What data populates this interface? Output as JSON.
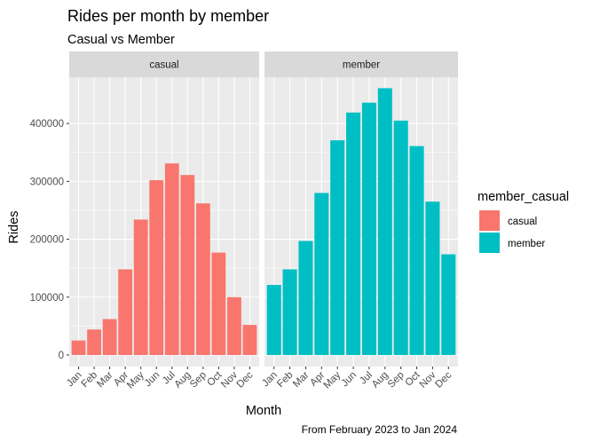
{
  "chart_data": {
    "type": "bar",
    "title": "Rides per month by member",
    "subtitle": "Casual vs Member",
    "caption": "From February 2023 to Jan 2024",
    "xlabel": "Month",
    "ylabel": "Rides",
    "categories": [
      "Jan",
      "Feb",
      "Mar",
      "Apr",
      "May",
      "Jun",
      "Jul",
      "Aug",
      "Sep",
      "Oct",
      "Nov",
      "Dec"
    ],
    "yticks": [
      0,
      100000,
      200000,
      300000,
      400000
    ],
    "ytick_labels": [
      "0",
      "100000",
      "200000",
      "300000",
      "400000"
    ],
    "ylim": [
      -20000,
      480000
    ],
    "grid": true,
    "legend": {
      "title": "member_casual",
      "position": "right"
    },
    "facets": [
      {
        "name": "casual",
        "color": "#F8766D",
        "values": [
          25000,
          44000,
          62000,
          148000,
          234000,
          302000,
          331000,
          311000,
          262000,
          177000,
          100000,
          52000
        ]
      },
      {
        "name": "member",
        "color": "#00BFC4",
        "values": [
          121000,
          148000,
          197000,
          280000,
          371000,
          419000,
          436000,
          461000,
          405000,
          361000,
          265000,
          174000
        ]
      }
    ]
  }
}
